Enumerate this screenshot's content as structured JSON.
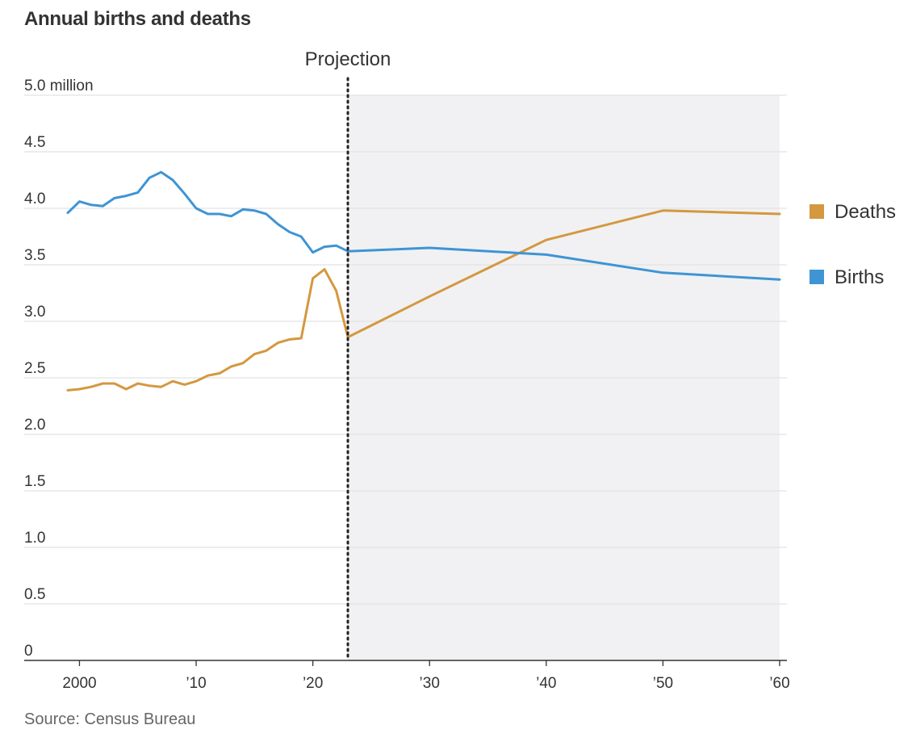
{
  "chart_data": {
    "type": "line",
    "title": "Annual births and deaths",
    "source": "Source: Census Bureau",
    "xlim": [
      1999,
      2060
    ],
    "ylim": [
      0,
      5.0
    ],
    "y_ticks": [
      {
        "value": 0,
        "label": "0"
      },
      {
        "value": 0.5,
        "label": "0.5"
      },
      {
        "value": 1.0,
        "label": "1.0"
      },
      {
        "value": 1.5,
        "label": "1.5"
      },
      {
        "value": 2.0,
        "label": "2.0"
      },
      {
        "value": 2.5,
        "label": "2.5"
      },
      {
        "value": 3.0,
        "label": "3.0"
      },
      {
        "value": 3.5,
        "label": "3.5"
      },
      {
        "value": 4.0,
        "label": "4.0"
      },
      {
        "value": 4.5,
        "label": "4.5"
      },
      {
        "value": 5.0,
        "label": "5.0 million"
      }
    ],
    "x_ticks": [
      {
        "value": 2000,
        "label": "2000"
      },
      {
        "value": 2010,
        "label": "’10"
      },
      {
        "value": 2020,
        "label": "’20"
      },
      {
        "value": 2030,
        "label": "’30"
      },
      {
        "value": 2040,
        "label": "’40"
      },
      {
        "value": 2050,
        "label": "’50"
      },
      {
        "value": 2060,
        "label": "’60"
      }
    ],
    "projection": {
      "start": 2023,
      "end": 2060,
      "label": "Projection"
    },
    "grid": true,
    "legend_position": "right",
    "series": [
      {
        "name": "Deaths",
        "color": "#d4983f",
        "points": [
          [
            1999,
            2.39
          ],
          [
            2000,
            2.4
          ],
          [
            2001,
            2.42
          ],
          [
            2002,
            2.45
          ],
          [
            2003,
            2.45
          ],
          [
            2004,
            2.4
          ],
          [
            2005,
            2.45
          ],
          [
            2006,
            2.43
          ],
          [
            2007,
            2.42
          ],
          [
            2008,
            2.47
          ],
          [
            2009,
            2.44
          ],
          [
            2010,
            2.47
          ],
          [
            2011,
            2.52
          ],
          [
            2012,
            2.54
          ],
          [
            2013,
            2.6
          ],
          [
            2014,
            2.63
          ],
          [
            2015,
            2.71
          ],
          [
            2016,
            2.74
          ],
          [
            2017,
            2.81
          ],
          [
            2018,
            2.84
          ],
          [
            2019,
            2.85
          ],
          [
            2020,
            3.38
          ],
          [
            2021,
            3.46
          ],
          [
            2022,
            3.27
          ],
          [
            2023,
            2.86
          ],
          [
            2030,
            3.22
          ],
          [
            2040,
            3.72
          ],
          [
            2050,
            3.98
          ],
          [
            2060,
            3.95
          ]
        ]
      },
      {
        "name": "Births",
        "color": "#3f94d4",
        "points": [
          [
            1999,
            3.96
          ],
          [
            2000,
            4.06
          ],
          [
            2001,
            4.03
          ],
          [
            2002,
            4.02
          ],
          [
            2003,
            4.09
          ],
          [
            2004,
            4.11
          ],
          [
            2005,
            4.14
          ],
          [
            2006,
            4.27
          ],
          [
            2007,
            4.32
          ],
          [
            2008,
            4.25
          ],
          [
            2009,
            4.13
          ],
          [
            2010,
            4.0
          ],
          [
            2011,
            3.95
          ],
          [
            2012,
            3.95
          ],
          [
            2013,
            3.93
          ],
          [
            2014,
            3.99
          ],
          [
            2015,
            3.98
          ],
          [
            2016,
            3.95
          ],
          [
            2017,
            3.86
          ],
          [
            2018,
            3.79
          ],
          [
            2019,
            3.75
          ],
          [
            2020,
            3.61
          ],
          [
            2021,
            3.66
          ],
          [
            2022,
            3.67
          ],
          [
            2023,
            3.62
          ],
          [
            2030,
            3.65
          ],
          [
            2040,
            3.59
          ],
          [
            2050,
            3.43
          ],
          [
            2060,
            3.37
          ]
        ]
      }
    ]
  }
}
